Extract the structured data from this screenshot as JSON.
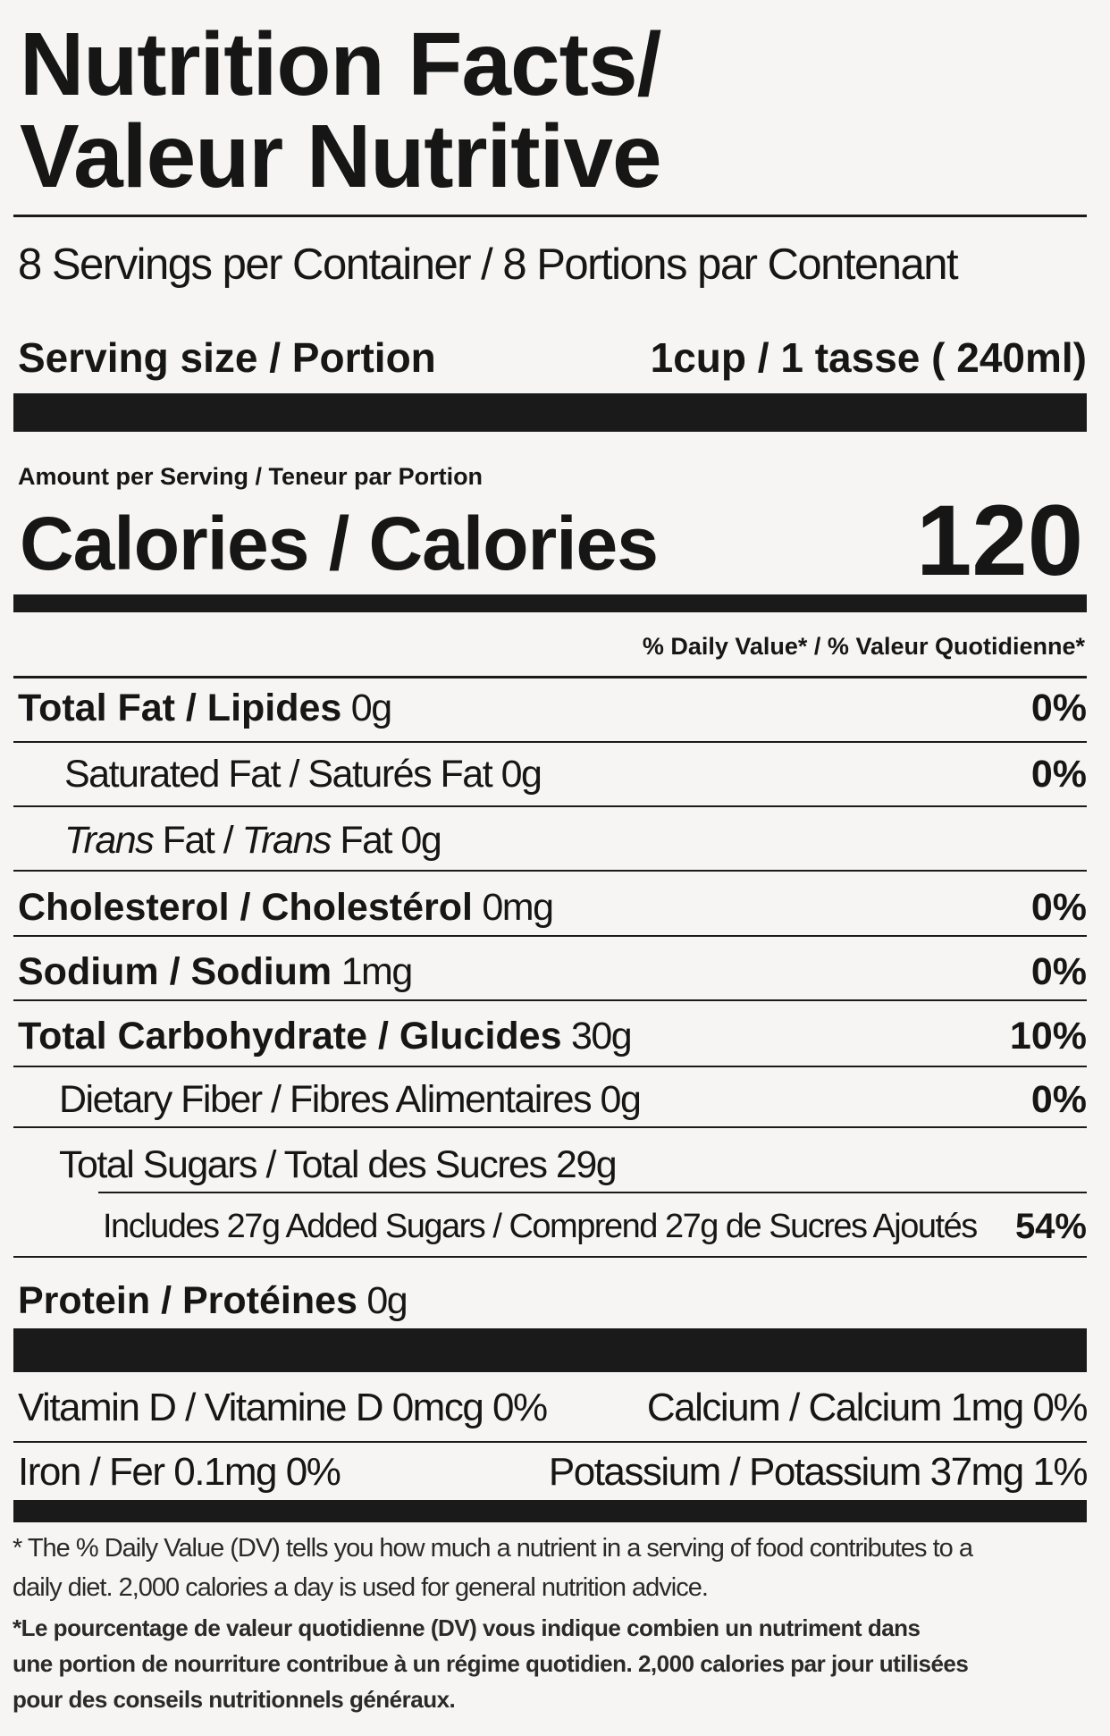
{
  "title": {
    "line1": "Nutrition Facts/",
    "line2": "Valeur Nutritive"
  },
  "servings": "8 Servings per Container / 8 Portions par Contenant",
  "serving_size": {
    "label": "Serving size / Portion",
    "value": "1cup / 1 tasse ( 240ml)"
  },
  "amount_per_serving": "Amount per Serving / Teneur par Portion",
  "calories": {
    "label": "Calories / Calories",
    "value": "120"
  },
  "daily_value_header": "% Daily Value* / % Valeur Quotidienne*",
  "nutrients": [
    {
      "label": "Total Fat / Lipides",
      "amount": "0g",
      "dv": "0%"
    },
    {
      "label": "Saturated Fat / Saturés Fat",
      "amount": "0g",
      "dv": "0%"
    },
    {
      "label_italic1": "Trans",
      "label_mid": " Fat / ",
      "label_italic2": "Trans",
      "label_end": " Fat",
      "amount": "0g",
      "dv": ""
    },
    {
      "label": "Cholesterol / Cholestérol",
      "amount": "0mg",
      "dv": "0%"
    },
    {
      "label": "Sodium / Sodium",
      "amount": "1mg",
      "dv": "0%"
    },
    {
      "label": "Total Carbohydrate / Glucides",
      "amount": "30g",
      "dv": "10%"
    },
    {
      "label": "Dietary Fiber / Fibres Alimentaires",
      "amount": "0g",
      "dv": "0%"
    },
    {
      "label": "Total Sugars / Total des Sucres",
      "amount": "29g",
      "dv": ""
    },
    {
      "label": "Includes 27g Added Sugars / Comprend 27g de Sucres Ajoutés",
      "amount": "",
      "dv": "54%"
    },
    {
      "label": "Protein / Protéines",
      "amount": "0g",
      "dv": ""
    }
  ],
  "micros": {
    "vitamin_d": "Vitamin D / Vitamine D 0mcg 0%",
    "calcium": "Calcium / Calcium 1mg 0%",
    "iron": "Iron / Fer  0.1mg 0%",
    "potassium": "Potassium / Potassium 37mg 1%"
  },
  "footnote_en": [
    "* The % Daily Value (DV) tells you how much a nutrient in a serving of food contributes to a",
    "daily diet. 2,000 calories a day is used for general nutrition advice."
  ],
  "footnote_fr": [
    "*Le pourcentage de valeur quotidienne (DV) vous indique combien un nutriment dans",
    "une portion de nourriture contribue à un régime quotidien. 2,000 calories par jour utilisées",
    "pour des conseils nutritionnels généraux."
  ]
}
